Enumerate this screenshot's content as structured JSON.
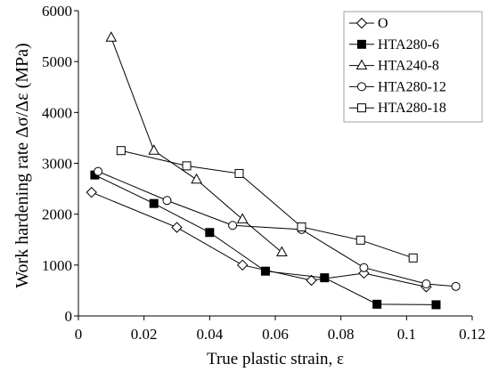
{
  "chart_data": {
    "type": "line",
    "xlabel": "True plastic strain, ε",
    "ylabel": "Work hardening rate Δσ/Δε (MPa)",
    "xlim": [
      0,
      0.12
    ],
    "ylim": [
      0,
      6000
    ],
    "xticks": [
      "0",
      "0.02",
      "0.04",
      "0.06",
      "0.08",
      "0.1",
      "0.12"
    ],
    "yticks": [
      "0",
      "1000",
      "2000",
      "3000",
      "4000",
      "5000",
      "6000"
    ],
    "grid": false,
    "legend_position": "top-right",
    "line_color": "#000000",
    "series": [
      {
        "name": "O",
        "marker": "diamond-open",
        "x": [
          0.004,
          0.03,
          0.05,
          0.071,
          0.087,
          0.106
        ],
        "y": [
          2430,
          1740,
          1000,
          700,
          840,
          570
        ]
      },
      {
        "name": "HTA280-6",
        "marker": "square-filled",
        "x": [
          0.005,
          0.023,
          0.04,
          0.057,
          0.075,
          0.091,
          0.109
        ],
        "y": [
          2770,
          2210,
          1640,
          880,
          750,
          230,
          220
        ]
      },
      {
        "name": "HTA240-8",
        "marker": "triangle-open",
        "x": [
          0.01,
          0.023,
          0.036,
          0.05,
          0.062
        ],
        "y": [
          5470,
          3250,
          2680,
          1900,
          1250
        ]
      },
      {
        "name": "HTA280-12",
        "marker": "circle-open",
        "x": [
          0.006,
          0.027,
          0.047,
          0.068,
          0.087,
          0.106,
          0.115
        ],
        "y": [
          2840,
          2270,
          1780,
          1700,
          950,
          630,
          580
        ]
      },
      {
        "name": "HTA280-18",
        "marker": "square-open",
        "x": [
          0.013,
          0.033,
          0.049,
          0.068,
          0.086,
          0.102
        ],
        "y": [
          3250,
          2950,
          2800,
          1750,
          1490,
          1140
        ]
      }
    ]
  }
}
